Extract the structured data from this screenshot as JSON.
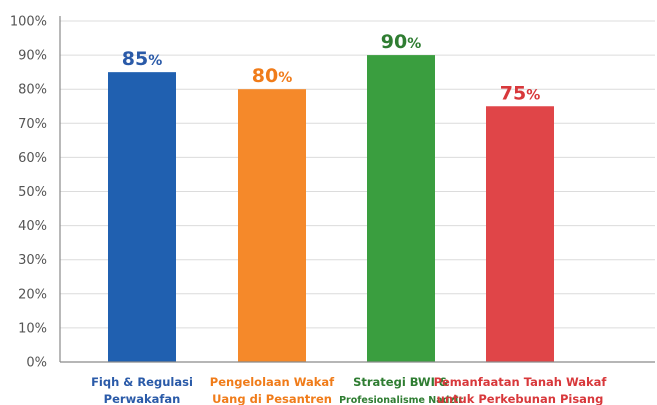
{
  "chart_data": {
    "type": "bar",
    "categories": [
      [
        "Fiqh & Regulasi",
        "Perwakafan"
      ],
      [
        "Pengelolaan Wakaf",
        "Uang di Pesantren"
      ],
      [
        "Strategi BWI &",
        "Profesionalisme Nadzir"
      ],
      [
        "Pemanfaatan Tanah Wakaf",
        "untuk Perkebunan Pisang"
      ]
    ],
    "values": [
      85,
      80,
      90,
      75
    ],
    "value_labels": [
      {
        "num": "85",
        "unit": "%"
      },
      {
        "num": "80",
        "unit": "%"
      },
      {
        "num": "90",
        "unit": "%"
      },
      {
        "num": "75",
        "unit": "%"
      }
    ],
    "colors": [
      "#2060b0",
      "#f5892a",
      "#3a9e3f",
      "#e04548"
    ],
    "label_colors": [
      "#2a5aa8",
      "#f07c1a",
      "#2f7d32",
      "#d8383b"
    ],
    "yticks": [
      "0%",
      "10%",
      "20%",
      "30%",
      "40%",
      "50%",
      "60%",
      "70%",
      "80%",
      "90%",
      "100%"
    ],
    "ylim": [
      0,
      100
    ],
    "grid": true,
    "title": "",
    "xlabel": "",
    "ylabel": ""
  }
}
